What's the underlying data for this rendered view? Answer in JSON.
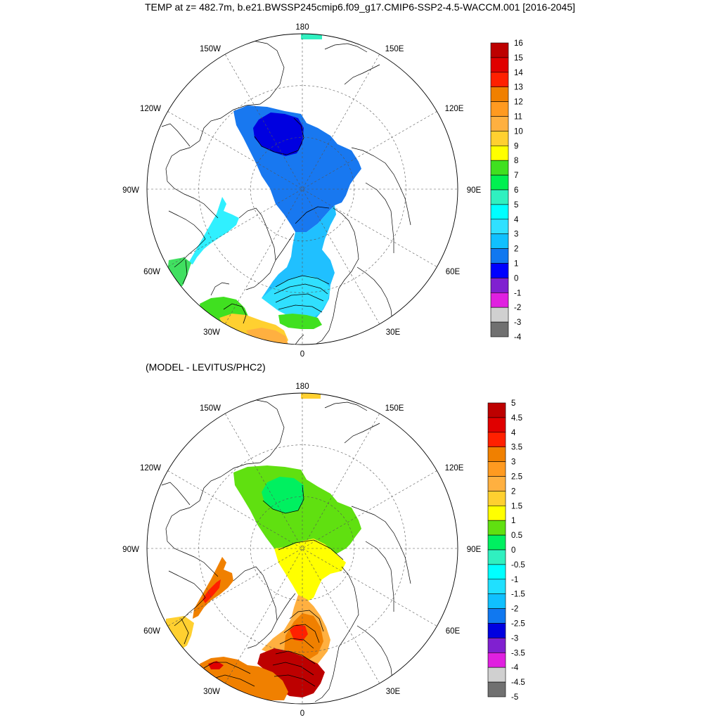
{
  "title": "TEMP at z= 482.7m, b.e21.BWSSP245cmip6.f09_g17.CMIP6-SSP2-4.5-WACCM.001 [2016-2045]",
  "subtitle": "(MODEL - LEVITUS/PHC2)",
  "lon_labels": {
    "top": "180",
    "bottom": "0",
    "w150": "150W",
    "e150": "150E",
    "w120": "120W",
    "e120": "120E",
    "w90": "90W",
    "e90": "90E",
    "w60": "60W",
    "e60": "60E",
    "w30": "30W",
    "e30": "30E"
  },
  "colorbar_top": {
    "labels": [
      "16",
      "15",
      "14",
      "13",
      "12",
      "11",
      "10",
      "9",
      "8",
      "7",
      "6",
      "5",
      "4",
      "3",
      "2",
      "1",
      "0",
      "-1",
      "-2",
      "-3",
      "-4"
    ],
    "colors": [
      "#bd0000",
      "#e00000",
      "#ff2000",
      "#f08000",
      "#ff9a20",
      "#ffb040",
      "#ffd030",
      "#ffff00",
      "#40e020",
      "#00f050",
      "#30f0c0",
      "#00ffff",
      "#30e0ff",
      "#10c0ff",
      "#1078f0",
      "#0000ff",
      "#8020d0",
      "#e020e0",
      "#d0d0d0",
      "#707070"
    ]
  },
  "colorbar_bottom": {
    "labels": [
      "5",
      "4.5",
      "4",
      "3.5",
      "3",
      "2.5",
      "2",
      "1.5",
      "1",
      "0.5",
      "0",
      "-0.5",
      "-1",
      "-1.5",
      "-2",
      "-2.5",
      "-3",
      "-3.5",
      "-4",
      "-4.5",
      "-5"
    ],
    "colors": [
      "#bd0000",
      "#e00000",
      "#ff2000",
      "#f08000",
      "#ff9a20",
      "#ffb040",
      "#ffd030",
      "#ffff00",
      "#60e010",
      "#00f060",
      "#30f0c0",
      "#00ffff",
      "#20e0ff",
      "#10c0ff",
      "#1078f0",
      "#0000e0",
      "#8020d0",
      "#e020e0",
      "#d0d0d0",
      "#707070"
    ]
  },
  "fields_top": {
    "pacific_basin": "#1878f0",
    "beaufort_core": "#0000e0",
    "fram_strait": "#20c0ff",
    "norwegian_sea": "#30e0ff",
    "baffin_bay": "#30f0ff",
    "labrador": "#40e060",
    "iceland_atlantic": "#40e020",
    "atlantic_warm": "#ffd030",
    "atlantic_warmer": "#ffb040",
    "north_sea": "#40e020"
  },
  "fields_bottom": {
    "pacific_basin": "#60e010",
    "beaufort_core": "#00f060",
    "eurasian_basin": "#ffff00",
    "fram_strait": "#ffb040",
    "fram_core": "#f08000",
    "fram_red": "#ff2000",
    "norwegian_sea": "#bd0000",
    "baffin_bay": "#f08000",
    "baffin_red": "#ff2000",
    "labrador": "#ffd030",
    "atlantic": "#f08000",
    "atlantic_red": "#e00000"
  }
}
